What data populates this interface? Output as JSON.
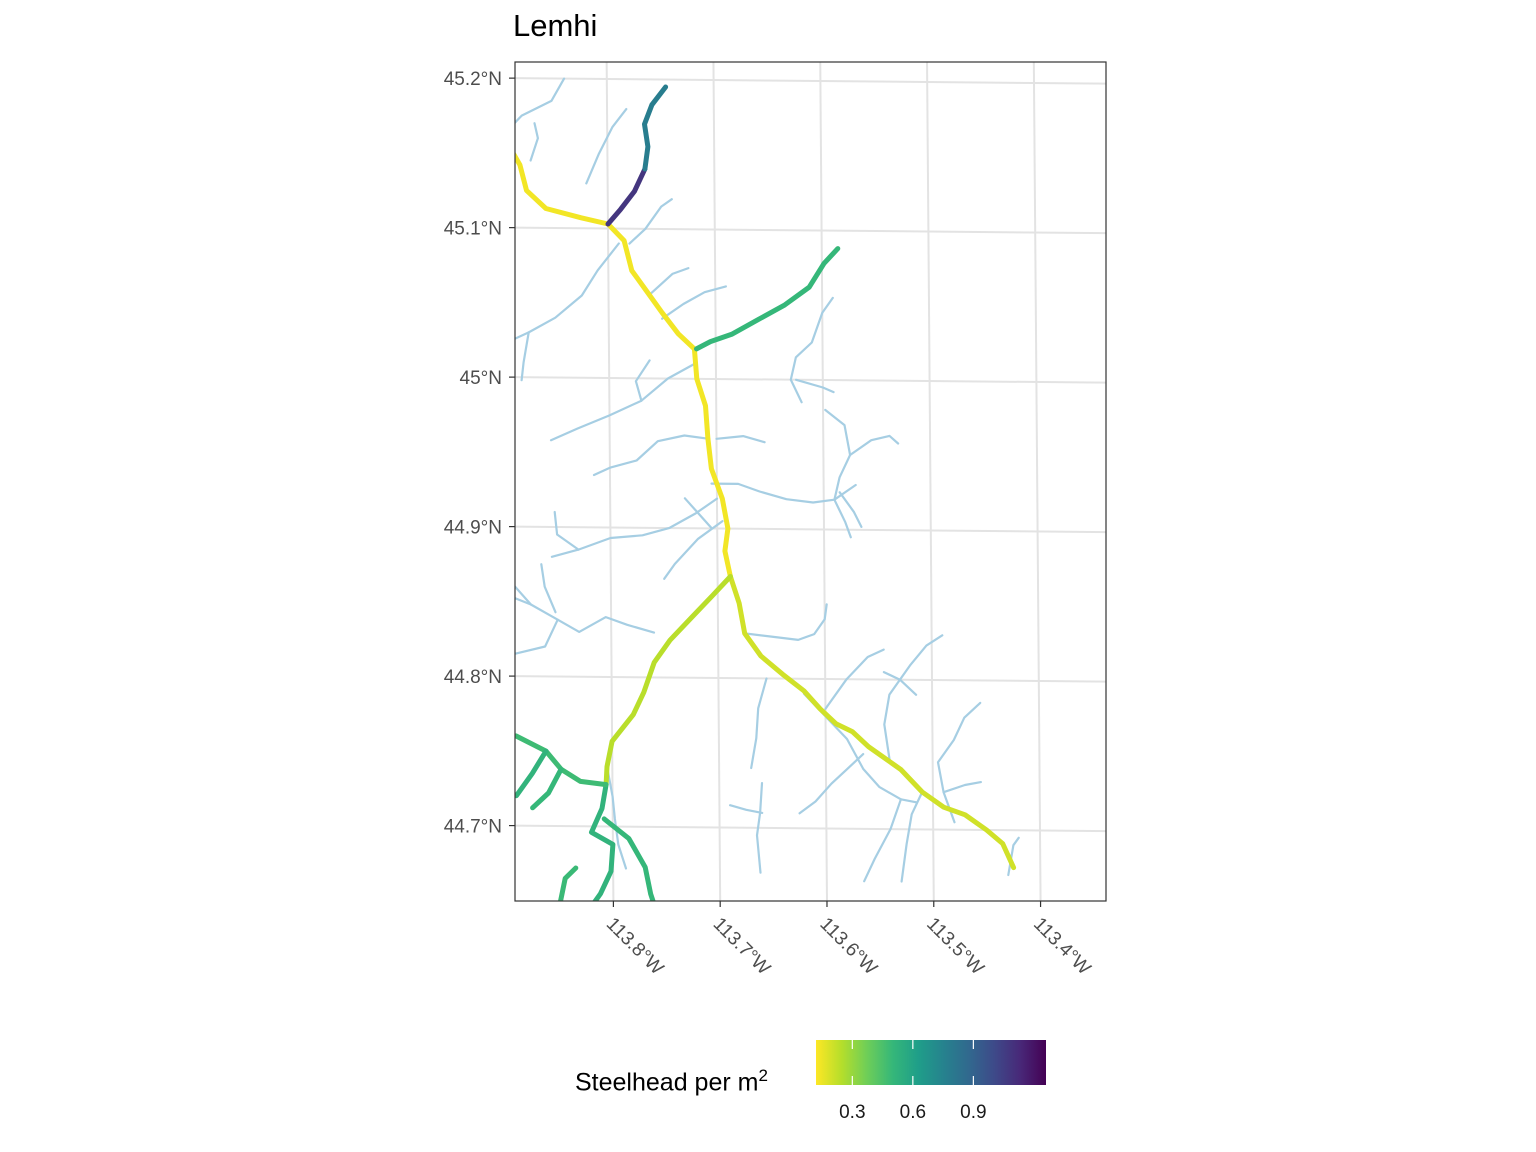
{
  "title": "Lemhi",
  "legend": {
    "title": "Steelhead per m",
    "title_superscript": "2",
    "min": 0.12,
    "max": 1.26,
    "ticks": [
      {
        "value": 0.3,
        "label": "0.3"
      },
      {
        "value": 0.6,
        "label": "0.6"
      },
      {
        "value": 0.9,
        "label": "0.9"
      }
    ],
    "palette": [
      "#fde725",
      "#b5de2b",
      "#6ece58",
      "#35b779",
      "#1f9e89",
      "#26828e",
      "#31688e",
      "#3e4989",
      "#482878",
      "#440154"
    ],
    "tributary_color": "#a6cee3"
  },
  "axes": {
    "lat_ticks": [
      {
        "value": 45.2,
        "label": "45.2°N"
      },
      {
        "value": 45.1,
        "label": "45.1°N"
      },
      {
        "value": 45.0,
        "label": "45°N"
      },
      {
        "value": 44.9,
        "label": "44.9°N"
      },
      {
        "value": 44.8,
        "label": "44.8°N"
      },
      {
        "value": 44.7,
        "label": "44.7°N"
      }
    ],
    "lon_ticks": [
      {
        "value": -113.8,
        "label": "113.8°W"
      },
      {
        "value": -113.7,
        "label": "113.7°W"
      },
      {
        "value": -113.6,
        "label": "113.6°W"
      },
      {
        "value": -113.5,
        "label": "113.5°W"
      },
      {
        "value": -113.4,
        "label": "113.4°W"
      }
    ]
  },
  "map_data": {
    "main_reaches": [
      {
        "value": 0.14,
        "coords": [
          [
            -113.96,
            45.186
          ],
          [
            -113.95,
            45.173
          ],
          [
            -113.93,
            45.165
          ],
          [
            -113.905,
            45.155
          ],
          [
            -113.89,
            45.152
          ],
          [
            -113.882,
            45.142
          ],
          [
            -113.876,
            45.125
          ],
          [
            -113.858,
            45.113
          ],
          [
            -113.825,
            45.107
          ],
          [
            -113.8,
            45.103
          ],
          [
            -113.785,
            45.092
          ],
          [
            -113.778,
            45.072
          ],
          [
            -113.765,
            45.059
          ],
          [
            -113.75,
            45.044
          ],
          [
            -113.735,
            45.03
          ],
          [
            -113.72,
            45.02
          ],
          [
            -113.718,
            45.0
          ],
          [
            -113.71,
            44.982
          ],
          [
            -113.708,
            44.96
          ],
          [
            -113.705,
            44.94
          ],
          [
            -113.695,
            44.92
          ],
          [
            -113.69,
            44.9
          ],
          [
            -113.693,
            44.885
          ],
          [
            -113.688,
            44.868
          ]
        ]
      },
      {
        "value": 0.2,
        "coords": [
          [
            -113.688,
            44.868
          ],
          [
            -113.68,
            44.85
          ],
          [
            -113.675,
            44.83
          ],
          [
            -113.66,
            44.815
          ],
          [
            -113.64,
            44.803
          ],
          [
            -113.62,
            44.792
          ],
          [
            -113.605,
            44.78
          ],
          [
            -113.59,
            44.77
          ],
          [
            -113.575,
            44.765
          ],
          [
            -113.56,
            44.755
          ],
          [
            -113.53,
            44.74
          ],
          [
            -113.51,
            44.725
          ],
          [
            -113.49,
            44.715
          ],
          [
            -113.47,
            44.71
          ],
          [
            -113.45,
            44.7
          ],
          [
            -113.435,
            44.691
          ],
          [
            -113.425,
            44.675
          ]
        ]
      },
      {
        "value": 0.24,
        "coords": [
          [
            -113.688,
            44.868
          ],
          [
            -113.705,
            44.855
          ],
          [
            -113.725,
            44.84
          ],
          [
            -113.745,
            44.825
          ],
          [
            -113.76,
            44.81
          ],
          [
            -113.77,
            44.79
          ],
          [
            -113.78,
            44.775
          ],
          [
            -113.8,
            44.757
          ],
          [
            -113.805,
            44.74
          ],
          [
            -113.806,
            44.728
          ]
        ]
      },
      {
        "value": 0.52,
        "coords": [
          [
            -113.806,
            44.728
          ],
          [
            -113.81,
            44.712
          ],
          [
            -113.82,
            44.696
          ],
          [
            -113.8,
            44.688
          ],
          [
            -113.802,
            44.67
          ],
          [
            -113.812,
            44.655
          ],
          [
            -113.825,
            44.642
          ]
        ]
      },
      {
        "value": 0.5,
        "coords": [
          [
            -113.808,
            44.705
          ],
          [
            -113.785,
            44.692
          ],
          [
            -113.77,
            44.673
          ],
          [
            -113.765,
            44.655
          ],
          [
            -113.76,
            44.644
          ]
        ]
      },
      {
        "value": 0.48,
        "coords": [
          [
            -113.806,
            44.728
          ],
          [
            -113.83,
            44.73
          ],
          [
            -113.848,
            44.738
          ],
          [
            -113.862,
            44.75
          ],
          [
            -113.89,
            44.76
          ]
        ]
      },
      {
        "value": 0.5,
        "coords": [
          [
            -113.848,
            44.738
          ],
          [
            -113.86,
            44.722
          ],
          [
            -113.875,
            44.712
          ]
        ]
      },
      {
        "value": 0.52,
        "coords": [
          [
            -113.862,
            44.75
          ],
          [
            -113.875,
            44.735
          ],
          [
            -113.89,
            44.72
          ]
        ]
      },
      {
        "value": 0.49,
        "coords": [
          [
            -113.826,
            44.64
          ],
          [
            -113.838,
            44.64
          ],
          [
            -113.85,
            44.648
          ],
          [
            -113.845,
            44.665
          ],
          [
            -113.835,
            44.672
          ]
        ]
      },
      {
        "value": 0.5,
        "coords": [
          [
            -113.718,
            45.02
          ],
          [
            -113.705,
            45.025
          ],
          [
            -113.685,
            45.03
          ],
          [
            -113.66,
            45.04
          ],
          [
            -113.635,
            45.05
          ],
          [
            -113.612,
            45.062
          ],
          [
            -113.598,
            45.078
          ],
          [
            -113.585,
            45.088
          ]
        ]
      },
      {
        "value": 1.08,
        "coords": [
          [
            -113.8,
            45.103
          ],
          [
            -113.788,
            45.113
          ],
          [
            -113.775,
            45.125
          ],
          [
            -113.765,
            45.14
          ]
        ]
      },
      {
        "value": 0.78,
        "coords": [
          [
            -113.765,
            45.14
          ],
          [
            -113.762,
            45.155
          ],
          [
            -113.765,
            45.17
          ],
          [
            -113.758,
            45.183
          ],
          [
            -113.745,
            45.195
          ]
        ]
      }
    ],
    "tributaries": [
      [
        [
          -113.9,
          45.16
        ],
        [
          -113.88,
          45.175
        ],
        [
          -113.852,
          45.185
        ],
        [
          -113.84,
          45.2
        ]
      ],
      [
        [
          -113.872,
          45.145
        ],
        [
          -113.865,
          45.16
        ],
        [
          -113.868,
          45.17
        ]
      ],
      [
        [
          -113.82,
          45.13
        ],
        [
          -113.808,
          45.15
        ],
        [
          -113.795,
          45.168
        ],
        [
          -113.782,
          45.18
        ]
      ],
      [
        [
          -113.78,
          45.09
        ],
        [
          -113.765,
          45.1
        ],
        [
          -113.75,
          45.115
        ],
        [
          -113.74,
          45.12
        ]
      ],
      [
        [
          -113.79,
          45.09
        ],
        [
          -113.81,
          45.072
        ],
        [
          -113.825,
          45.055
        ],
        [
          -113.85,
          45.04
        ],
        [
          -113.875,
          45.03
        ],
        [
          -113.89,
          45.025
        ]
      ],
      [
        [
          -113.89,
          45.025
        ],
        [
          -113.905,
          45.02
        ],
        [
          -113.915,
          45.012
        ]
      ],
      [
        [
          -113.875,
          45.03
        ],
        [
          -113.88,
          45.01
        ],
        [
          -113.882,
          44.998
        ]
      ],
      [
        [
          -113.895,
          45.03
        ],
        [
          -113.92,
          45.032
        ]
      ],
      [
        [
          -113.76,
          45.057
        ],
        [
          -113.74,
          45.07
        ],
        [
          -113.725,
          45.074
        ]
      ],
      [
        [
          -113.75,
          45.04
        ],
        [
          -113.73,
          45.05
        ],
        [
          -113.71,
          45.058
        ],
        [
          -113.69,
          45.062
        ]
      ],
      [
        [
          -113.72,
          45.01
        ],
        [
          -113.745,
          45.0
        ],
        [
          -113.77,
          44.985
        ],
        [
          -113.8,
          44.975
        ],
        [
          -113.83,
          44.966
        ],
        [
          -113.855,
          44.958
        ]
      ],
      [
        [
          -113.77,
          44.985
        ],
        [
          -113.775,
          44.998
        ],
        [
          -113.762,
          45.012
        ]
      ],
      [
        [
          -113.708,
          44.96
        ],
        [
          -113.73,
          44.962
        ],
        [
          -113.755,
          44.958
        ],
        [
          -113.775,
          44.945
        ],
        [
          -113.8,
          44.94
        ],
        [
          -113.815,
          44.935
        ]
      ],
      [
        [
          -113.7,
          44.96
        ],
        [
          -113.675,
          44.962
        ],
        [
          -113.655,
          44.958
        ]
      ],
      [
        [
          -113.7,
          44.92
        ],
        [
          -113.72,
          44.91
        ],
        [
          -113.745,
          44.9
        ],
        [
          -113.77,
          44.895
        ],
        [
          -113.8,
          44.893
        ],
        [
          -113.83,
          44.885
        ],
        [
          -113.855,
          44.88
        ]
      ],
      [
        [
          -113.83,
          44.885
        ],
        [
          -113.85,
          44.895
        ],
        [
          -113.852,
          44.91
        ]
      ],
      [
        [
          -113.705,
          44.93
        ],
        [
          -113.68,
          44.93
        ],
        [
          -113.66,
          44.925
        ],
        [
          -113.635,
          44.92
        ],
        [
          -113.61,
          44.918
        ],
        [
          -113.59,
          44.92
        ],
        [
          -113.57,
          44.93
        ]
      ],
      [
        [
          -113.59,
          44.92
        ],
        [
          -113.585,
          44.935
        ],
        [
          -113.575,
          44.95
        ],
        [
          -113.555,
          44.96
        ],
        [
          -113.538,
          44.963
        ],
        [
          -113.53,
          44.958
        ]
      ],
      [
        [
          -113.59,
          44.92
        ],
        [
          -113.58,
          44.905
        ],
        [
          -113.575,
          44.895
        ]
      ],
      [
        [
          -113.585,
          44.925
        ],
        [
          -113.572,
          44.912
        ],
        [
          -113.565,
          44.902
        ]
      ],
      [
        [
          -113.575,
          44.95
        ],
        [
          -113.58,
          44.97
        ],
        [
          -113.598,
          44.98
        ]
      ],
      [
        [
          -113.62,
          44.985
        ],
        [
          -113.63,
          45.0
        ],
        [
          -113.625,
          45.015
        ],
        [
          -113.61,
          45.025
        ],
        [
          -113.6,
          45.045
        ],
        [
          -113.59,
          45.055
        ]
      ],
      [
        [
          -113.625,
          45.0
        ],
        [
          -113.6,
          44.995
        ],
        [
          -113.59,
          44.992
        ]
      ],
      [
        [
          -113.695,
          44.905
        ],
        [
          -113.718,
          44.893
        ],
        [
          -113.74,
          44.876
        ],
        [
          -113.75,
          44.866
        ]
      ],
      [
        [
          -113.705,
          44.9
        ],
        [
          -113.72,
          44.912
        ],
        [
          -113.73,
          44.92
        ]
      ],
      [
        [
          -113.76,
          44.83
        ],
        [
          -113.785,
          44.835
        ],
        [
          -113.805,
          44.84
        ],
        [
          -113.83,
          44.83
        ],
        [
          -113.85,
          44.838
        ],
        [
          -113.875,
          44.848
        ],
        [
          -113.9,
          44.855
        ]
      ],
      [
        [
          -113.85,
          44.838
        ],
        [
          -113.862,
          44.82
        ],
        [
          -113.89,
          44.815
        ],
        [
          -113.91,
          44.818
        ]
      ],
      [
        [
          -113.875,
          44.848
        ],
        [
          -113.89,
          44.86
        ],
        [
          -113.905,
          44.865
        ],
        [
          -113.918,
          44.872
        ]
      ],
      [
        [
          -113.852,
          44.843
        ],
        [
          -113.862,
          44.86
        ],
        [
          -113.865,
          44.875
        ]
      ],
      [
        [
          -113.675,
          44.83
        ],
        [
          -113.65,
          44.828
        ],
        [
          -113.625,
          44.826
        ],
        [
          -113.61,
          44.83
        ],
        [
          -113.6,
          44.84
        ],
        [
          -113.598,
          44.85
        ]
      ],
      [
        [
          -113.655,
          44.8
        ],
        [
          -113.663,
          44.78
        ],
        [
          -113.665,
          44.76
        ],
        [
          -113.67,
          44.74
        ]
      ],
      [
        [
          -113.62,
          44.79
        ],
        [
          -113.6,
          44.775
        ],
        [
          -113.58,
          44.76
        ],
        [
          -113.565,
          44.74
        ],
        [
          -113.55,
          44.728
        ],
        [
          -113.53,
          44.72
        ],
        [
          -113.515,
          44.718
        ]
      ],
      [
        [
          -113.6,
          44.78
        ],
        [
          -113.58,
          44.8
        ],
        [
          -113.56,
          44.815
        ],
        [
          -113.545,
          44.82
        ]
      ],
      [
        [
          -113.565,
          44.75
        ],
        [
          -113.58,
          44.74
        ],
        [
          -113.595,
          44.73
        ],
        [
          -113.61,
          44.718
        ],
        [
          -113.625,
          44.71
        ]
      ],
      [
        [
          -113.66,
          44.73
        ],
        [
          -113.662,
          44.71
        ],
        [
          -113.665,
          44.695
        ],
        [
          -113.662,
          44.67
        ]
      ],
      [
        [
          -113.66,
          44.71
        ],
        [
          -113.675,
          44.712
        ],
        [
          -113.69,
          44.715
        ]
      ],
      [
        [
          -113.54,
          44.745
        ],
        [
          -113.545,
          44.77
        ],
        [
          -113.54,
          44.79
        ],
        [
          -113.52,
          44.81
        ],
        [
          -113.505,
          44.823
        ],
        [
          -113.49,
          44.83
        ]
      ],
      [
        [
          -113.515,
          44.79
        ],
        [
          -113.53,
          44.8
        ],
        [
          -113.545,
          44.805
        ]
      ],
      [
        [
          -113.48,
          44.705
        ],
        [
          -113.49,
          44.725
        ],
        [
          -113.495,
          44.745
        ],
        [
          -113.48,
          44.76
        ],
        [
          -113.47,
          44.775
        ],
        [
          -113.455,
          44.785
        ]
      ],
      [
        [
          -113.49,
          44.725
        ],
        [
          -113.47,
          44.73
        ],
        [
          -113.455,
          44.732
        ]
      ],
      [
        [
          -113.51,
          44.725
        ],
        [
          -113.52,
          44.71
        ],
        [
          -113.525,
          44.69
        ],
        [
          -113.53,
          44.665
        ]
      ],
      [
        [
          -113.53,
          44.72
        ],
        [
          -113.54,
          44.7
        ],
        [
          -113.555,
          44.68
        ],
        [
          -113.565,
          44.665
        ]
      ],
      [
        [
          -113.43,
          44.67
        ],
        [
          -113.425,
          44.69
        ],
        [
          -113.42,
          44.695
        ]
      ],
      [
        [
          -113.805,
          44.74
        ],
        [
          -113.8,
          44.72
        ],
        [
          -113.798,
          44.705
        ],
        [
          -113.795,
          44.688
        ],
        [
          -113.788,
          44.672
        ]
      ]
    ]
  }
}
